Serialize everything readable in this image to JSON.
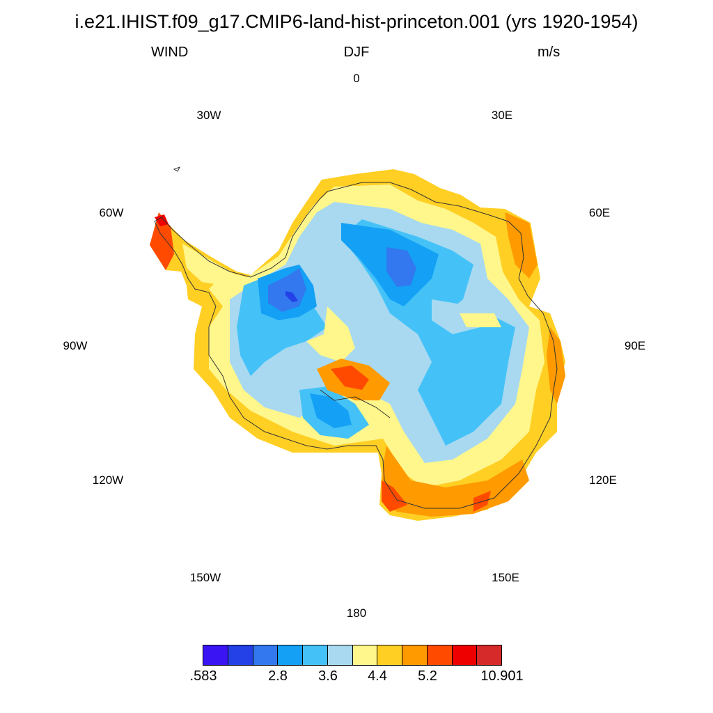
{
  "title": "i.e21.IHIST.f09_g17.CMIP6-land-hist-princeton.001 (yrs 1920-1954)",
  "subtitle_left": "WIND",
  "subtitle_center": "DJF",
  "subtitle_right": "m/s",
  "longitude_labels": [
    "0",
    "30E",
    "60E",
    "90E",
    "120E",
    "150E",
    "180",
    "150W",
    "120W",
    "90W",
    "60W",
    "30W"
  ],
  "colorbar": {
    "colors": [
      "#3a14f2",
      "#2441e8",
      "#3378ee",
      "#13a0f5",
      "#44c2f7",
      "#a8d9f0",
      "#fff68c",
      "#ffcf24",
      "#ff9a00",
      "#ff4a00",
      "#ee0000",
      "#d62a2a"
    ],
    "labels": [
      ".583",
      "2.8",
      "3.6",
      "4.4",
      "5.2",
      "10.901"
    ]
  }
}
